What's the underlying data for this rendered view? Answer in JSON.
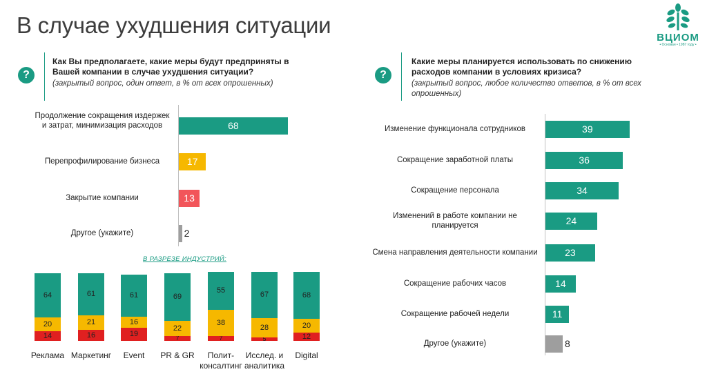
{
  "page": {
    "title": "В случае ухудшения ситуации"
  },
  "logo": {
    "name": "ВЦИОМ",
    "tagline": "• Основан • 1987 году •"
  },
  "colors": {
    "teal": "#1a9b83",
    "yellow": "#f6b800",
    "red": "#e02020",
    "salmon": "#f2555a",
    "gray": "#9e9e9e"
  },
  "left_question": {
    "icon": "question-icon",
    "question": "Как Вы предполагаете, какие меры будут предприняты в Вашей компании в случае ухудшения ситуации?",
    "note": "(закрытый вопрос, один ответ, в % от всех опрошенных)"
  },
  "right_question": {
    "icon": "question-icon",
    "question": "Какие меры планируется использовать по снижению расходов компании в условиях кризиса?",
    "note": "(закрытый вопрос, любое количество ответов, в % от всех опрошенных)"
  },
  "industries_title": "В РАЗРЕЗЕ ИНДУСТРИЙ:",
  "chart_data": [
    {
      "type": "bar",
      "orientation": "horizontal",
      "categories": [
        "Продолжение сокращения издержек и затрат, минимизация расходов",
        "Перепрофилирование бизнеса",
        "Закрытие компании",
        "Другое (укажите)"
      ],
      "values": [
        68,
        17,
        13,
        2
      ],
      "value_labels": [
        "68",
        "17",
        "13",
        "2"
      ],
      "colors": [
        "#1a9b83",
        "#f6b800",
        "#f2555a",
        "#9e9e9e"
      ]
    },
    {
      "type": "bar",
      "orientation": "vertical-stacked",
      "categories": [
        "Реклама",
        "Маркетинг",
        "Event",
        "PR & GR",
        "Полит-консалтинг",
        "Исслед. и аналитика",
        "Digital"
      ],
      "series": [
        {
          "values": [
            64,
            61,
            61,
            69,
            55,
            67,
            68
          ],
          "labels": [
            "64",
            "61",
            "61",
            "69",
            "55",
            "67",
            "68"
          ],
          "color": "#1a9b83"
        },
        {
          "values": [
            20,
            21,
            16,
            22,
            38,
            28,
            20
          ],
          "labels": [
            "20",
            "21",
            "16",
            "22",
            "38",
            "28",
            "20"
          ],
          "color": "#f6b800"
        },
        {
          "values": [
            14,
            16,
            19,
            7,
            7,
            5,
            12
          ],
          "labels": [
            "14",
            "16",
            "19",
            "7",
            "7",
            "5",
            "12"
          ],
          "color": "#e02020"
        }
      ]
    },
    {
      "type": "bar",
      "orientation": "horizontal",
      "categories": [
        "Изменение функционала сотрудников",
        "Сокращение заработной платы",
        "Сокращение персонала",
        "Изменений в работе компании не планируется",
        "Смена направления деятельности компании",
        "Сокращение рабочих часов",
        "Сокращение рабочей недели",
        "Другое (укажите)"
      ],
      "values": [
        39,
        36,
        34,
        24,
        23,
        14,
        11,
        8
      ],
      "value_labels": [
        "39",
        "36",
        "34",
        "24",
        "23",
        "14",
        "11",
        "8"
      ],
      "colors": [
        "#1a9b83",
        "#1a9b83",
        "#1a9b83",
        "#1a9b83",
        "#1a9b83",
        "#1a9b83",
        "#1a9b83",
        "#9e9e9e"
      ]
    }
  ]
}
